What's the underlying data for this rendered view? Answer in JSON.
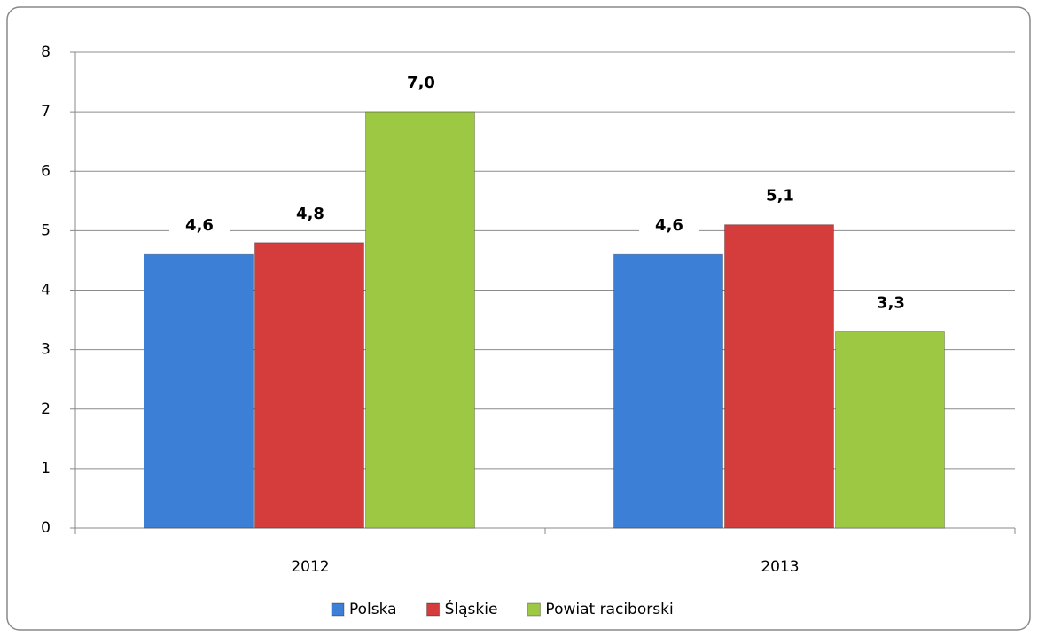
{
  "chart_data": {
    "type": "bar",
    "categories": [
      "2012",
      "2013"
    ],
    "series": [
      {
        "name": "Polska",
        "color": "#3b7fd6",
        "values": [
          4.6,
          4.6
        ],
        "value_labels": [
          "4,6",
          "4,6"
        ]
      },
      {
        "name": "Śląskie",
        "color": "#d43d3b",
        "values": [
          4.8,
          5.1
        ],
        "value_labels": [
          "4,8",
          "5,1"
        ]
      },
      {
        "name": "Powiat raciborski",
        "color": "#9cc843",
        "values": [
          7.0,
          3.3
        ],
        "value_labels": [
          "7,0",
          "3,3"
        ]
      }
    ],
    "ylim": [
      0,
      8
    ],
    "yticks": [
      0,
      1,
      2,
      3,
      4,
      5,
      6,
      7,
      8
    ],
    "grid": true,
    "legend": "bottom"
  }
}
